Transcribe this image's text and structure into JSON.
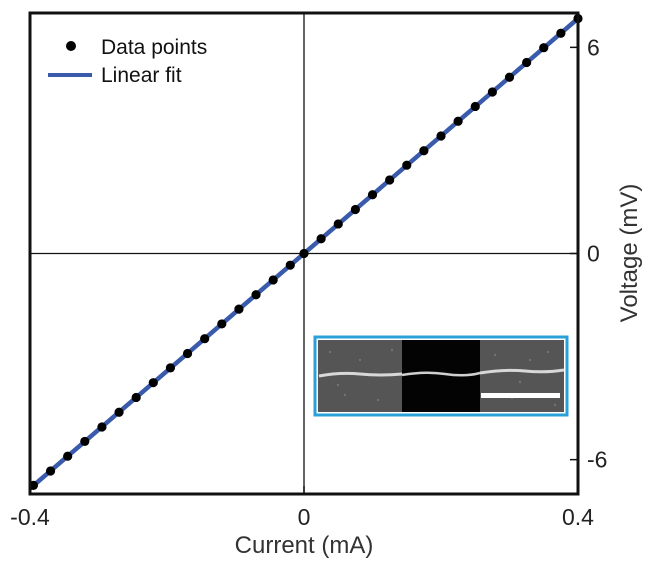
{
  "chart_data": {
    "type": "scatter",
    "xlabel": "Current (mA)",
    "ylabel": "Voltage (mV)",
    "xlim": [
      -0.4,
      0.4
    ],
    "ylim": [
      -7,
      7
    ],
    "x_ticks": [
      {
        "value": -0.4,
        "label": "-0.4"
      },
      {
        "value": 0,
        "label": "0"
      },
      {
        "value": 0.4,
        "label": "0.4"
      }
    ],
    "y_ticks": [
      {
        "value": 6,
        "label": "6"
      },
      {
        "value": 0,
        "label": "0"
      },
      {
        "value": -6,
        "label": "-6"
      }
    ],
    "y_axis_side": "right",
    "zero_lines": true,
    "legend_position": "top-left",
    "series": [
      {
        "name": "Data points",
        "kind": "markers",
        "color": "#000000",
        "x": [
          -0.395,
          -0.37,
          -0.345,
          -0.32,
          -0.295,
          -0.27,
          -0.245,
          -0.22,
          -0.195,
          -0.17,
          -0.145,
          -0.12,
          -0.095,
          -0.07,
          -0.045,
          -0.02,
          0.0,
          0.025,
          0.05,
          0.075,
          0.1,
          0.125,
          0.15,
          0.175,
          0.2,
          0.225,
          0.25,
          0.275,
          0.3,
          0.325,
          0.35,
          0.375,
          0.4
        ],
        "y": [
          -6.75,
          -6.33,
          -5.9,
          -5.47,
          -5.05,
          -4.62,
          -4.19,
          -3.76,
          -3.33,
          -2.91,
          -2.48,
          -2.05,
          -1.62,
          -1.2,
          -0.77,
          -0.34,
          0.0,
          0.43,
          0.86,
          1.28,
          1.71,
          2.14,
          2.57,
          2.99,
          3.42,
          3.85,
          4.28,
          4.7,
          5.13,
          5.56,
          5.99,
          6.41,
          6.84
        ]
      },
      {
        "name": "Linear fit",
        "kind": "line",
        "color": "#3a5bab",
        "x": [
          -0.4,
          0.4
        ],
        "y": [
          -6.84,
          6.84
        ]
      }
    ],
    "inset": {
      "kind": "micrograph",
      "border_color": "#2a9fd8"
    }
  }
}
